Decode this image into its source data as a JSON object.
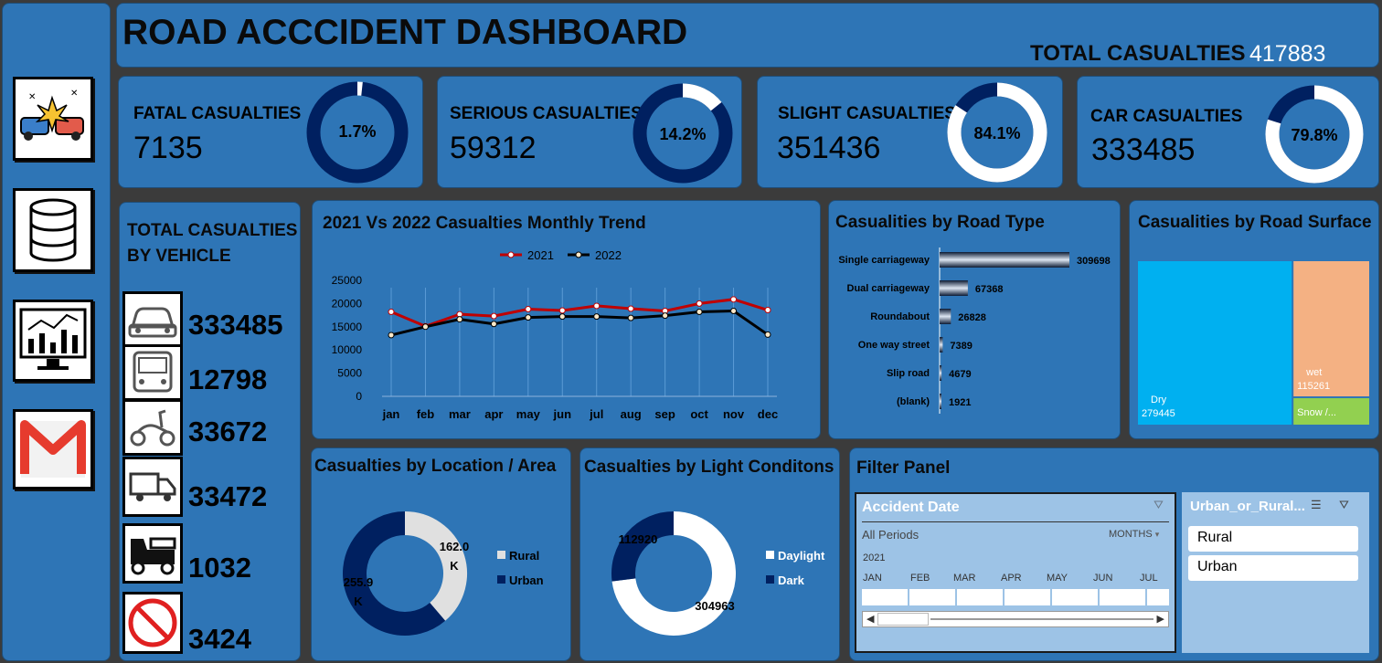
{
  "header": {
    "title": "ROAD ACCCIDENT DASHBOARD",
    "total_label": "TOTAL CASUALTIES",
    "total_value": "417883"
  },
  "sidebar": {
    "icons": [
      "car-crash-icon",
      "database-icon",
      "analytics-monitor-icon",
      "gmail-icon"
    ]
  },
  "kpis": [
    {
      "label": "FATAL CASUALTIES",
      "value": "7135",
      "pct_label": "1.7%",
      "pct": 1.7
    },
    {
      "label": "SERIOUS CASUALTIES",
      "value": "59312",
      "pct_label": "14.2%",
      "pct": 14.2
    },
    {
      "label": "SLIGHT CASUALTIES",
      "value": "351436",
      "pct_label": "84.1%",
      "pct": 84.1
    },
    {
      "label": "CAR CASUALTIES",
      "value": "333485",
      "pct_label": "79.8%",
      "pct": 79.8
    }
  ],
  "vehicles": {
    "title_line1": "TOTAL CASUALTIES",
    "title_line2": "BY VEHICLE",
    "items": [
      {
        "icon": "car-icon",
        "value": "333485"
      },
      {
        "icon": "bus-icon",
        "value": "12798"
      },
      {
        "icon": "scooter-icon",
        "value": "33672"
      },
      {
        "icon": "van-icon",
        "value": "33472"
      },
      {
        "icon": "truck-icon",
        "value": "1032"
      },
      {
        "icon": "no-entry-icon",
        "value": "3424"
      }
    ]
  },
  "colors": {
    "panel": "#2e75b6",
    "dark_navy": "#002060",
    "red_2021": "#c00000",
    "black_2022": "#000000",
    "dry": "#00b0f0",
    "wet": "#f4b183",
    "snow": "#92d050"
  },
  "chart_data": [
    {
      "type": "line",
      "title": "2021 Vs 2022 Casualties Monthly Trend",
      "categories": [
        "jan",
        "feb",
        "mar",
        "apr",
        "may",
        "jun",
        "jul",
        "aug",
        "sep",
        "oct",
        "nov",
        "dec"
      ],
      "series": [
        {
          "name": "2021",
          "values": [
            18200,
            15100,
            17700,
            17300,
            18800,
            18500,
            19500,
            18900,
            18400,
            20000,
            20900,
            18600
          ]
        },
        {
          "name": "2022",
          "values": [
            13200,
            15000,
            16600,
            15600,
            17000,
            17200,
            17200,
            16900,
            17400,
            18200,
            18400,
            13300
          ]
        }
      ],
      "yticks": [
        "25000",
        "20000",
        "15000",
        "10000",
        "5000",
        "0"
      ],
      "ylim": [
        0,
        25000
      ],
      "legend": "top"
    },
    {
      "type": "bar",
      "title": "Casualities by Road Type",
      "categories": [
        "Single carriageway",
        "Dual carriageway",
        "Roundabout",
        "One way street",
        "Slip road",
        "(blank)"
      ],
      "values": [
        309698,
        67368,
        26828,
        7389,
        4679,
        1921
      ],
      "value_labels": [
        "309698",
        "67368",
        "26828",
        "7389",
        "4679",
        "1921"
      ]
    },
    {
      "type": "heatmap",
      "title": "Casualities by Road Surface",
      "items": [
        {
          "name": "Dry",
          "value": 279445,
          "value_label": "279445"
        },
        {
          "name": "wet",
          "value": 115261,
          "value_label": "115261"
        },
        {
          "name": "Snow /...",
          "value": 23177,
          "value_label": ""
        }
      ]
    },
    {
      "type": "pie",
      "title": "Casualties  by Location / Area",
      "items": [
        {
          "name": "Rural",
          "value": 162.0,
          "label": "162.0 K"
        },
        {
          "name": "Urban",
          "value": 255.9,
          "label": "255.9 K"
        }
      ],
      "legend": "right"
    },
    {
      "type": "pie",
      "title": "Casualties by Light Conditons",
      "items": [
        {
          "name": "Daylight",
          "value": 304963,
          "label": "304963"
        },
        {
          "name": "Dark",
          "value": 112920,
          "label": "112920"
        }
      ],
      "legend": "right"
    }
  ],
  "filter_panel": {
    "title": "Filter Panel",
    "timeline": {
      "title": "Accident Date",
      "period": "All Periods",
      "granularity": "MONTHS",
      "year": "2021",
      "months": [
        "JAN",
        "FEB",
        "MAR",
        "APR",
        "MAY",
        "JUN",
        "JUL"
      ]
    },
    "slicer": {
      "title": "Urban_or_Rural...",
      "items": [
        "Rural",
        "Urban"
      ]
    }
  }
}
